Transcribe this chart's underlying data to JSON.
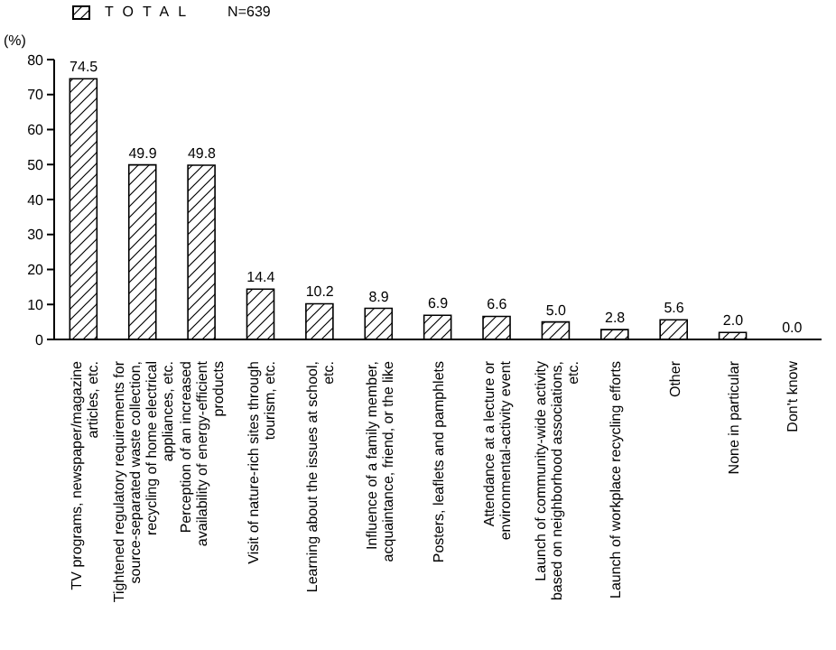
{
  "chart_data": {
    "type": "bar",
    "ylabel": "(%)",
    "categories": [
      "TV programs, newspaper/magazine articles, etc.",
      "Tightened regulatory requirements for source-separated waste collection, recycling of home electrical appliances, etc.",
      "Perception of an increased availability of energy-efficient products",
      "Visit of nature-rich sites through tourism, etc.",
      "Learning about the issues at school, etc.",
      "Influence of a family member, acquaintance, friend, or the like",
      "Posters, leaflets and pamphlets",
      "Attendance at a lecture or environmental-activity event",
      "Launch of community-wide activity based on neighborhood associations, etc.",
      "Launch of workplace recycling efforts",
      "Other",
      "None in particular",
      "Don't know"
    ],
    "series": [
      {
        "name": "TOTAL",
        "color": "#000000",
        "values": [
          74.5,
          49.9,
          49.8,
          14.4,
          10.2,
          8.9,
          6.9,
          6.6,
          5.0,
          2.8,
          5.6,
          2.0,
          0.0
        ],
        "value_labels": [
          "74.5",
          "49.9",
          "49.8",
          "14.4",
          "10.2",
          "8.9",
          "6.9",
          "6.6",
          "5.0",
          "2.8",
          "5.6",
          "2.0",
          "0.0"
        ]
      }
    ],
    "ylim": [
      0,
      80
    ],
    "yticks": [
      0,
      10,
      20,
      30,
      40,
      50,
      60,
      70,
      80
    ],
    "grid": false,
    "legend": "top left",
    "annotations": [
      "N=639"
    ]
  }
}
